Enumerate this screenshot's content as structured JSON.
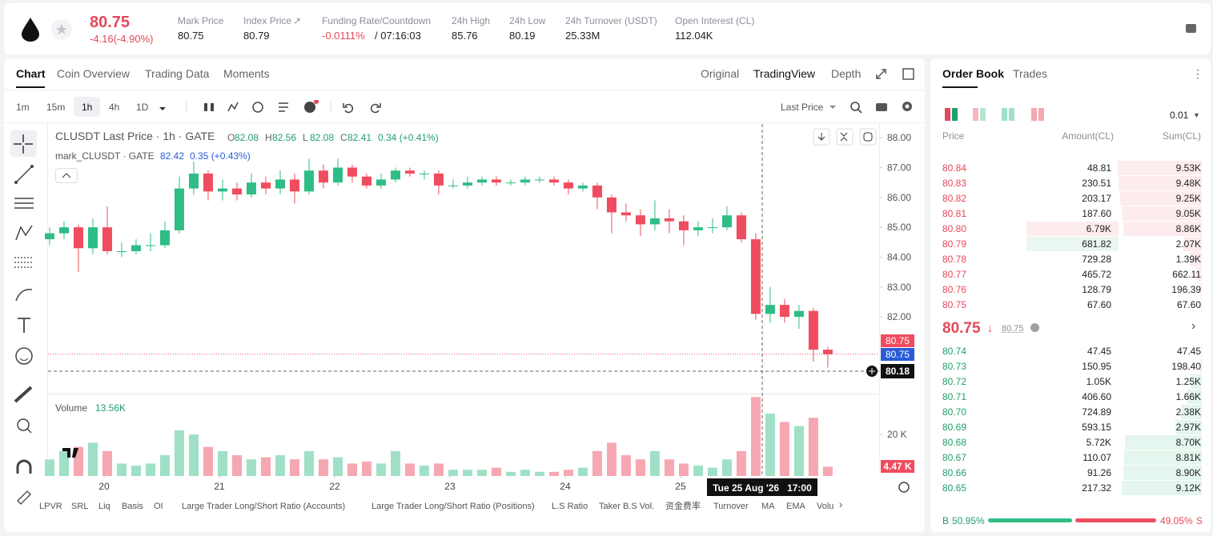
{
  "header": {
    "price": "80.75",
    "change": "-4.16(-4.90%)",
    "stats": [
      {
        "label": "Mark Price",
        "value": "80.75"
      },
      {
        "label": "Index Price",
        "value": "80.79"
      },
      {
        "label": "Funding Rate/Countdown",
        "value": "-0.0111%",
        "extra": "/ 07:16:03"
      },
      {
        "label": "24h High",
        "value": "85.76"
      },
      {
        "label": "24h Low",
        "value": "80.19"
      },
      {
        "label": "24h Turnover (USDT)",
        "value": "25.33M"
      },
      {
        "label": "Open Interest (CL)",
        "value": "112.04K"
      }
    ]
  },
  "tabs": [
    "Chart",
    "Coin Overview",
    "Trading Data",
    "Moments"
  ],
  "views": [
    "Original",
    "TradingView",
    "Depth"
  ],
  "intervals": [
    "1m",
    "15m",
    "1h",
    "4h",
    "1D"
  ],
  "price_type": "Last Price",
  "chart_data": {
    "type": "candlestick",
    "title": "CLUSDT Last Price · 1h · GATE",
    "ohlc_legend": [
      [
        "O",
        "82.08"
      ],
      [
        "H",
        "82.56"
      ],
      [
        "L",
        "82.08"
      ],
      [
        "C",
        "82.41"
      ]
    ],
    "change_legend": "0.34 (+0.41%)",
    "mark_legend": "mark_CLUSDT · GATE",
    "mark_value": "82.42",
    "mark_change": "0.35 (+0.43%)",
    "candles": [
      [
        84.6,
        85.0,
        84.4,
        84.8
      ],
      [
        84.8,
        85.2,
        84.6,
        85.0
      ],
      [
        85.0,
        85.1,
        83.5,
        84.3
      ],
      [
        84.3,
        85.3,
        84.1,
        85.0
      ],
      [
        85.0,
        85.7,
        84.1,
        84.2
      ],
      [
        84.2,
        84.5,
        84.0,
        84.2
      ],
      [
        84.2,
        84.6,
        84.1,
        84.4
      ],
      [
        84.4,
        84.8,
        84.2,
        84.4
      ],
      [
        84.4,
        85.2,
        84.3,
        84.9
      ],
      [
        84.9,
        86.7,
        84.8,
        86.3
      ],
      [
        86.3,
        87.2,
        86.1,
        86.8
      ],
      [
        86.8,
        86.9,
        85.9,
        86.2
      ],
      [
        86.2,
        86.6,
        85.9,
        86.3
      ],
      [
        86.3,
        86.5,
        85.9,
        86.1
      ],
      [
        86.1,
        86.8,
        86.0,
        86.5
      ],
      [
        86.5,
        86.7,
        86.1,
        86.3
      ],
      [
        86.3,
        86.9,
        86.1,
        86.6
      ],
      [
        86.6,
        86.8,
        85.8,
        86.2
      ],
      [
        86.2,
        87.3,
        86.1,
        86.9
      ],
      [
        86.9,
        87.1,
        86.3,
        86.5
      ],
      [
        86.5,
        87.3,
        86.4,
        87.0
      ],
      [
        87.0,
        87.1,
        86.5,
        86.7
      ],
      [
        86.7,
        86.8,
        86.3,
        86.4
      ],
      [
        86.4,
        86.8,
        86.3,
        86.6
      ],
      [
        86.6,
        87.0,
        86.5,
        86.9
      ],
      [
        86.9,
        87.0,
        86.7,
        86.8
      ],
      [
        86.8,
        86.9,
        86.6,
        86.8
      ],
      [
        86.8,
        86.9,
        86.1,
        86.4
      ],
      [
        86.4,
        86.6,
        86.3,
        86.4
      ],
      [
        86.4,
        86.7,
        86.3,
        86.5
      ],
      [
        86.5,
        86.7,
        86.4,
        86.6
      ],
      [
        86.6,
        86.7,
        86.4,
        86.5
      ],
      [
        86.5,
        86.6,
        86.4,
        86.5
      ],
      [
        86.5,
        86.7,
        86.4,
        86.6
      ],
      [
        86.6,
        86.7,
        86.5,
        86.6
      ],
      [
        86.6,
        86.7,
        86.4,
        86.5
      ],
      [
        86.5,
        86.6,
        86.1,
        86.3
      ],
      [
        86.3,
        86.5,
        86.2,
        86.4
      ],
      [
        86.4,
        86.5,
        85.6,
        86.0
      ],
      [
        86.0,
        86.1,
        84.8,
        85.5
      ],
      [
        85.5,
        85.8,
        85.2,
        85.4
      ],
      [
        85.4,
        85.6,
        84.7,
        85.1
      ],
      [
        85.1,
        85.9,
        84.9,
        85.3
      ],
      [
        85.3,
        85.6,
        84.8,
        85.2
      ],
      [
        85.2,
        85.4,
        84.4,
        84.9
      ],
      [
        84.9,
        85.2,
        84.7,
        85.0
      ],
      [
        85.0,
        85.3,
        84.8,
        85.0
      ],
      [
        85.0,
        85.7,
        84.9,
        85.4
      ],
      [
        85.4,
        85.5,
        84.5,
        84.6
      ],
      [
        84.6,
        84.8,
        81.9,
        82.1
      ],
      [
        82.1,
        83.0,
        81.8,
        82.4
      ],
      [
        82.4,
        82.6,
        81.8,
        82.0
      ],
      [
        82.0,
        82.4,
        81.6,
        82.2
      ],
      [
        82.2,
        82.3,
        80.5,
        80.9
      ],
      [
        80.9,
        81.0,
        80.3,
        80.75
      ]
    ],
    "volumes": [
      8,
      12,
      14,
      16,
      12,
      6,
      5,
      6,
      10,
      22,
      20,
      14,
      12,
      10,
      8,
      9,
      10,
      8,
      12,
      8,
      9,
      6,
      7,
      6,
      12,
      6,
      5,
      6,
      3,
      3,
      3,
      4,
      2,
      3,
      2,
      2,
      3,
      4,
      12,
      16,
      10,
      8,
      12,
      8,
      6,
      5,
      4,
      8,
      12,
      38,
      30,
      26,
      24,
      28,
      4.47
    ],
    "up_color": "#2ebd85",
    "down_color": "#ef4d5f",
    "up_volume_color": "#9fe0c7",
    "down_volume_color": "#f5a7b2",
    "ylim": [
      79.43,
      88.46
    ],
    "yticks": [
      {
        "value": 82,
        "label": "82.00"
      },
      {
        "value": 83,
        "label": "83.00"
      },
      {
        "value": 84,
        "label": "84.00"
      },
      {
        "value": 85,
        "label": "85.00"
      },
      {
        "value": 86,
        "label": "86.00"
      },
      {
        "value": 87,
        "label": "87.00"
      },
      {
        "value": 88,
        "label": "88.00"
      }
    ],
    "xlim": [
      -0.11,
      57.56
    ],
    "xticks": [
      {
        "value": 3.78,
        "label": "20"
      },
      {
        "value": 11.78,
        "label": "21"
      },
      {
        "value": 19.78,
        "label": "22"
      },
      {
        "value": 27.78,
        "label": "23"
      },
      {
        "value": 35.78,
        "label": "24"
      },
      {
        "value": 43.78,
        "label": "25"
      }
    ],
    "volume_title": "Volume",
    "volume_value": "13.56K",
    "volume_ylim": [
      0,
      38.5
    ],
    "volume_yticks": [
      {
        "value": 20,
        "label": "20 K"
      }
    ],
    "last_volume_label": "4.47 K",
    "last_price_label": "80.75",
    "mark_price_label": "80.75",
    "crosshair_price": "80.18",
    "crosshair_time": "Tue 25 Aug '26   17:00"
  },
  "indicators": [
    "LPVR",
    "SRL",
    "Liq",
    "Basis",
    "OI",
    "Large Trader Long/Short Ratio (Accounts)",
    "Large Trader Long/Short Ratio (Positions)",
    "L.S Ratio",
    "Taker B.S Vol.",
    "资金费率",
    "Turnover",
    "MA",
    "EMA",
    "Volu"
  ],
  "order_book": {
    "tabs": [
      "Order Book",
      "Trades"
    ],
    "precision": "0.01",
    "headers": [
      "Price",
      "Amount(CL)",
      "Sum(CL)"
    ],
    "asks": [
      [
        "80.84",
        "48.81",
        "9.53K"
      ],
      [
        "80.83",
        "230.51",
        "9.48K"
      ],
      [
        "80.82",
        "203.17",
        "9.25K"
      ],
      [
        "80.81",
        "187.60",
        "9.05K"
      ],
      [
        "80.80",
        "6.79K",
        "8.86K"
      ],
      [
        "80.79",
        "681.82",
        "2.07K"
      ],
      [
        "80.78",
        "729.28",
        "1.39K"
      ],
      [
        "80.77",
        "465.72",
        "662.11"
      ],
      [
        "80.76",
        "128.79",
        "196.39"
      ],
      [
        "80.75",
        "67.60",
        "67.60"
      ]
    ],
    "last": "80.75",
    "mark": "80.75",
    "bids": [
      [
        "80.74",
        "47.45",
        "47.45"
      ],
      [
        "80.73",
        "150.95",
        "198.40"
      ],
      [
        "80.72",
        "1.05K",
        "1.25K"
      ],
      [
        "80.71",
        "406.60",
        "1.66K"
      ],
      [
        "80.70",
        "724.89",
        "2.38K"
      ],
      [
        "80.69",
        "593.15",
        "2.97K"
      ],
      [
        "80.68",
        "5.72K",
        "8.70K"
      ],
      [
        "80.67",
        "110.07",
        "8.81K"
      ],
      [
        "80.66",
        "91.26",
        "8.90K"
      ],
      [
        "80.65",
        "217.32",
        "9.12K"
      ]
    ],
    "buy": "B",
    "buy_pct": "50.95%",
    "sell_pct": "49.05%",
    "sell": "S"
  }
}
